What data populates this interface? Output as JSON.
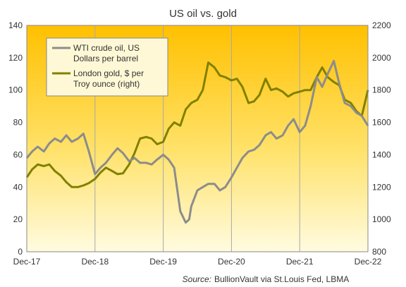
{
  "chart_data": {
    "type": "line",
    "title": "US oil vs. gold",
    "source_prefix": "Source:",
    "source_text": "BullionVault via  St.Louis Fed, LBMA",
    "x_tick_labels": [
      "Dec-17",
      "Dec-18",
      "Dec-19",
      "Dec-20",
      "Dec-21",
      "Dec-22"
    ],
    "xlim": [
      "Dec-17",
      "Dec-22"
    ],
    "y_left": {
      "ylim": [
        0,
        140
      ],
      "ticks": [
        0,
        20,
        40,
        60,
        80,
        100,
        120,
        140
      ]
    },
    "y_right": {
      "ylim": [
        800,
        2200
      ],
      "ticks": [
        800,
        1000,
        1200,
        1400,
        1600,
        1800,
        2000,
        2200
      ]
    },
    "grid": "vertical",
    "legend_position": "top-left",
    "series": [
      {
        "name": "WTI crude oil, US Dollars per barrel",
        "legend_lines": [
          "WTI crude oil, US",
          "Dollars per barrel"
        ],
        "axis": "left",
        "color": "#8c8c8c",
        "x": [
          2017.92,
          2018.0,
          2018.08,
          2018.17,
          2018.25,
          2018.33,
          2018.42,
          2018.5,
          2018.58,
          2018.67,
          2018.75,
          2018.83,
          2018.92,
          2019.0,
          2019.08,
          2019.17,
          2019.25,
          2019.33,
          2019.42,
          2019.5,
          2019.58,
          2019.67,
          2019.75,
          2019.83,
          2019.92,
          2020.0,
          2020.08,
          2020.17,
          2020.25,
          2020.3,
          2020.33,
          2020.42,
          2020.5,
          2020.58,
          2020.67,
          2020.75,
          2020.83,
          2020.92,
          2021.0,
          2021.08,
          2021.17,
          2021.25,
          2021.33,
          2021.42,
          2021.5,
          2021.58,
          2021.67,
          2021.75,
          2021.83,
          2021.92,
          2022.0,
          2022.08,
          2022.17,
          2022.25,
          2022.33,
          2022.42,
          2022.5,
          2022.58,
          2022.67,
          2022.75,
          2022.83,
          2022.92
        ],
        "values": [
          58,
          62,
          65,
          62,
          67,
          70,
          68,
          72,
          68,
          70,
          73,
          62,
          48,
          52,
          55,
          60,
          64,
          61,
          56,
          58,
          55,
          55,
          54,
          57,
          60,
          57,
          52,
          25,
          18,
          20,
          28,
          38,
          40,
          42,
          42,
          38,
          40,
          46,
          52,
          58,
          62,
          63,
          66,
          72,
          74,
          70,
          72,
          78,
          82,
          74,
          78,
          90,
          108,
          102,
          110,
          118,
          104,
          92,
          90,
          86,
          84,
          78
        ]
      },
      {
        "name": "London gold, $ per Troy ounce (right)",
        "legend_lines": [
          "London gold, $ per",
          "Troy ounce (right)"
        ],
        "axis": "right",
        "color": "#808000",
        "x": [
          2017.92,
          2018.0,
          2018.08,
          2018.17,
          2018.25,
          2018.33,
          2018.42,
          2018.5,
          2018.58,
          2018.67,
          2018.75,
          2018.83,
          2018.92,
          2019.0,
          2019.08,
          2019.17,
          2019.25,
          2019.33,
          2019.42,
          2019.5,
          2019.58,
          2019.67,
          2019.75,
          2019.83,
          2019.92,
          2020.0,
          2020.08,
          2020.17,
          2020.25,
          2020.33,
          2020.42,
          2020.5,
          2020.58,
          2020.67,
          2020.75,
          2020.83,
          2020.92,
          2021.0,
          2021.08,
          2021.17,
          2021.25,
          2021.33,
          2021.42,
          2021.5,
          2021.58,
          2021.67,
          2021.75,
          2021.83,
          2021.92,
          2022.0,
          2022.08,
          2022.17,
          2022.25,
          2022.33,
          2022.42,
          2022.5,
          2022.58,
          2022.67,
          2022.75,
          2022.83,
          2022.92
        ],
        "values": [
          1260,
          1310,
          1340,
          1330,
          1340,
          1300,
          1270,
          1230,
          1200,
          1200,
          1210,
          1225,
          1250,
          1290,
          1320,
          1300,
          1280,
          1285,
          1340,
          1410,
          1500,
          1510,
          1500,
          1465,
          1480,
          1560,
          1600,
          1580,
          1680,
          1720,
          1740,
          1800,
          1970,
          1940,
          1890,
          1880,
          1860,
          1870,
          1820,
          1720,
          1730,
          1770,
          1870,
          1800,
          1810,
          1790,
          1760,
          1780,
          1790,
          1800,
          1800,
          1880,
          1940,
          1880,
          1850,
          1830,
          1740,
          1720,
          1670,
          1640,
          1800
        ]
      }
    ]
  }
}
